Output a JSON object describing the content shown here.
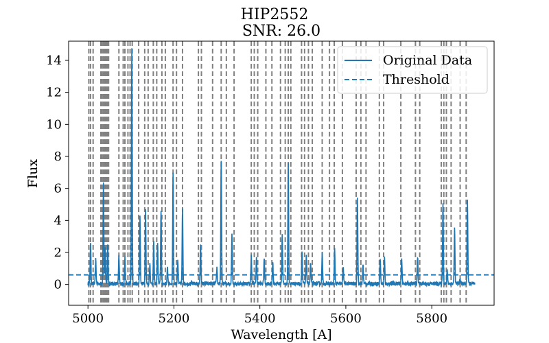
{
  "chart_data": {
    "type": "line",
    "title": "HIP2552",
    "subtitle": "SNR: 26.0",
    "xlabel": "Wavelength [A]",
    "ylabel": "Flux",
    "xlim": [
      4955,
      5945
    ],
    "ylim": [
      -1.3,
      15.2
    ],
    "x_ticks": [
      5000,
      5200,
      5400,
      5600,
      5800
    ],
    "y_ticks": [
      0,
      2,
      4,
      6,
      8,
      10,
      12,
      14
    ],
    "legend_position": "top-right",
    "grid": false,
    "threshold": 0.6,
    "series": [
      {
        "name": "Original Data",
        "style": "solid",
        "color": "#1f77b4"
      },
      {
        "name": "Threshold",
        "style": "dashed",
        "color": "#1f77b4"
      }
    ],
    "x_range": [
      5000,
      5900
    ],
    "baseline": 0.05,
    "peaks": [
      {
        "x": 5006,
        "y": 2.6
      },
      {
        "x": 5018,
        "y": 1.5
      },
      {
        "x": 5036,
        "y": 6.3
      },
      {
        "x": 5040,
        "y": 2.3
      },
      {
        "x": 5046,
        "y": 2.5
      },
      {
        "x": 5072,
        "y": 1.7
      },
      {
        "x": 5086,
        "y": 1.6
      },
      {
        "x": 5102,
        "y": 14.6
      },
      {
        "x": 5121,
        "y": 4.2
      },
      {
        "x": 5134,
        "y": 4.6
      },
      {
        "x": 5144,
        "y": 1.3
      },
      {
        "x": 5153,
        "y": 2.7
      },
      {
        "x": 5162,
        "y": 2.5
      },
      {
        "x": 5170,
        "y": 4.6
      },
      {
        "x": 5185,
        "y": 1.0
      },
      {
        "x": 5198,
        "y": 7.0
      },
      {
        "x": 5209,
        "y": 1.4
      },
      {
        "x": 5220,
        "y": 4.6
      },
      {
        "x": 5262,
        "y": 2.5
      },
      {
        "x": 5300,
        "y": 1.0
      },
      {
        "x": 5310,
        "y": 7.7
      },
      {
        "x": 5335,
        "y": 3.2
      },
      {
        "x": 5380,
        "y": 1.8
      },
      {
        "x": 5392,
        "y": 1.6
      },
      {
        "x": 5410,
        "y": 1.6
      },
      {
        "x": 5430,
        "y": 1.3
      },
      {
        "x": 5452,
        "y": 3.0
      },
      {
        "x": 5466,
        "y": 7.5
      },
      {
        "x": 5498,
        "y": 2.0
      },
      {
        "x": 5508,
        "y": 1.8
      },
      {
        "x": 5518,
        "y": 1.3
      },
      {
        "x": 5545,
        "y": 1.9
      },
      {
        "x": 5574,
        "y": 2.2
      },
      {
        "x": 5594,
        "y": 1.1
      },
      {
        "x": 5627,
        "y": 5.4
      },
      {
        "x": 5640,
        "y": 1.2
      },
      {
        "x": 5680,
        "y": 1.6
      },
      {
        "x": 5690,
        "y": 1.6
      },
      {
        "x": 5730,
        "y": 1.6
      },
      {
        "x": 5767,
        "y": 1.7
      },
      {
        "x": 5826,
        "y": 5.1
      },
      {
        "x": 5836,
        "y": 0.9
      },
      {
        "x": 5853,
        "y": 3.5
      },
      {
        "x": 5866,
        "y": 0.3
      },
      {
        "x": 5883,
        "y": 5.2
      }
    ],
    "vertical_lines": [
      5002,
      5006,
      5012,
      5030,
      5033,
      5036,
      5039,
      5042,
      5045,
      5048,
      5072,
      5082,
      5086,
      5093,
      5098,
      5103,
      5118,
      5132,
      5140,
      5152,
      5160,
      5172,
      5180,
      5198,
      5206,
      5220,
      5257,
      5264,
      5290,
      5310,
      5322,
      5340,
      5380,
      5387,
      5395,
      5414,
      5428,
      5448,
      5459,
      5466,
      5472,
      5497,
      5504,
      5513,
      5522,
      5545,
      5562,
      5573,
      5592,
      5624,
      5635,
      5647,
      5678,
      5688,
      5728,
      5762,
      5772,
      5822,
      5828,
      5834,
      5845,
      5866,
      5880
    ]
  }
}
